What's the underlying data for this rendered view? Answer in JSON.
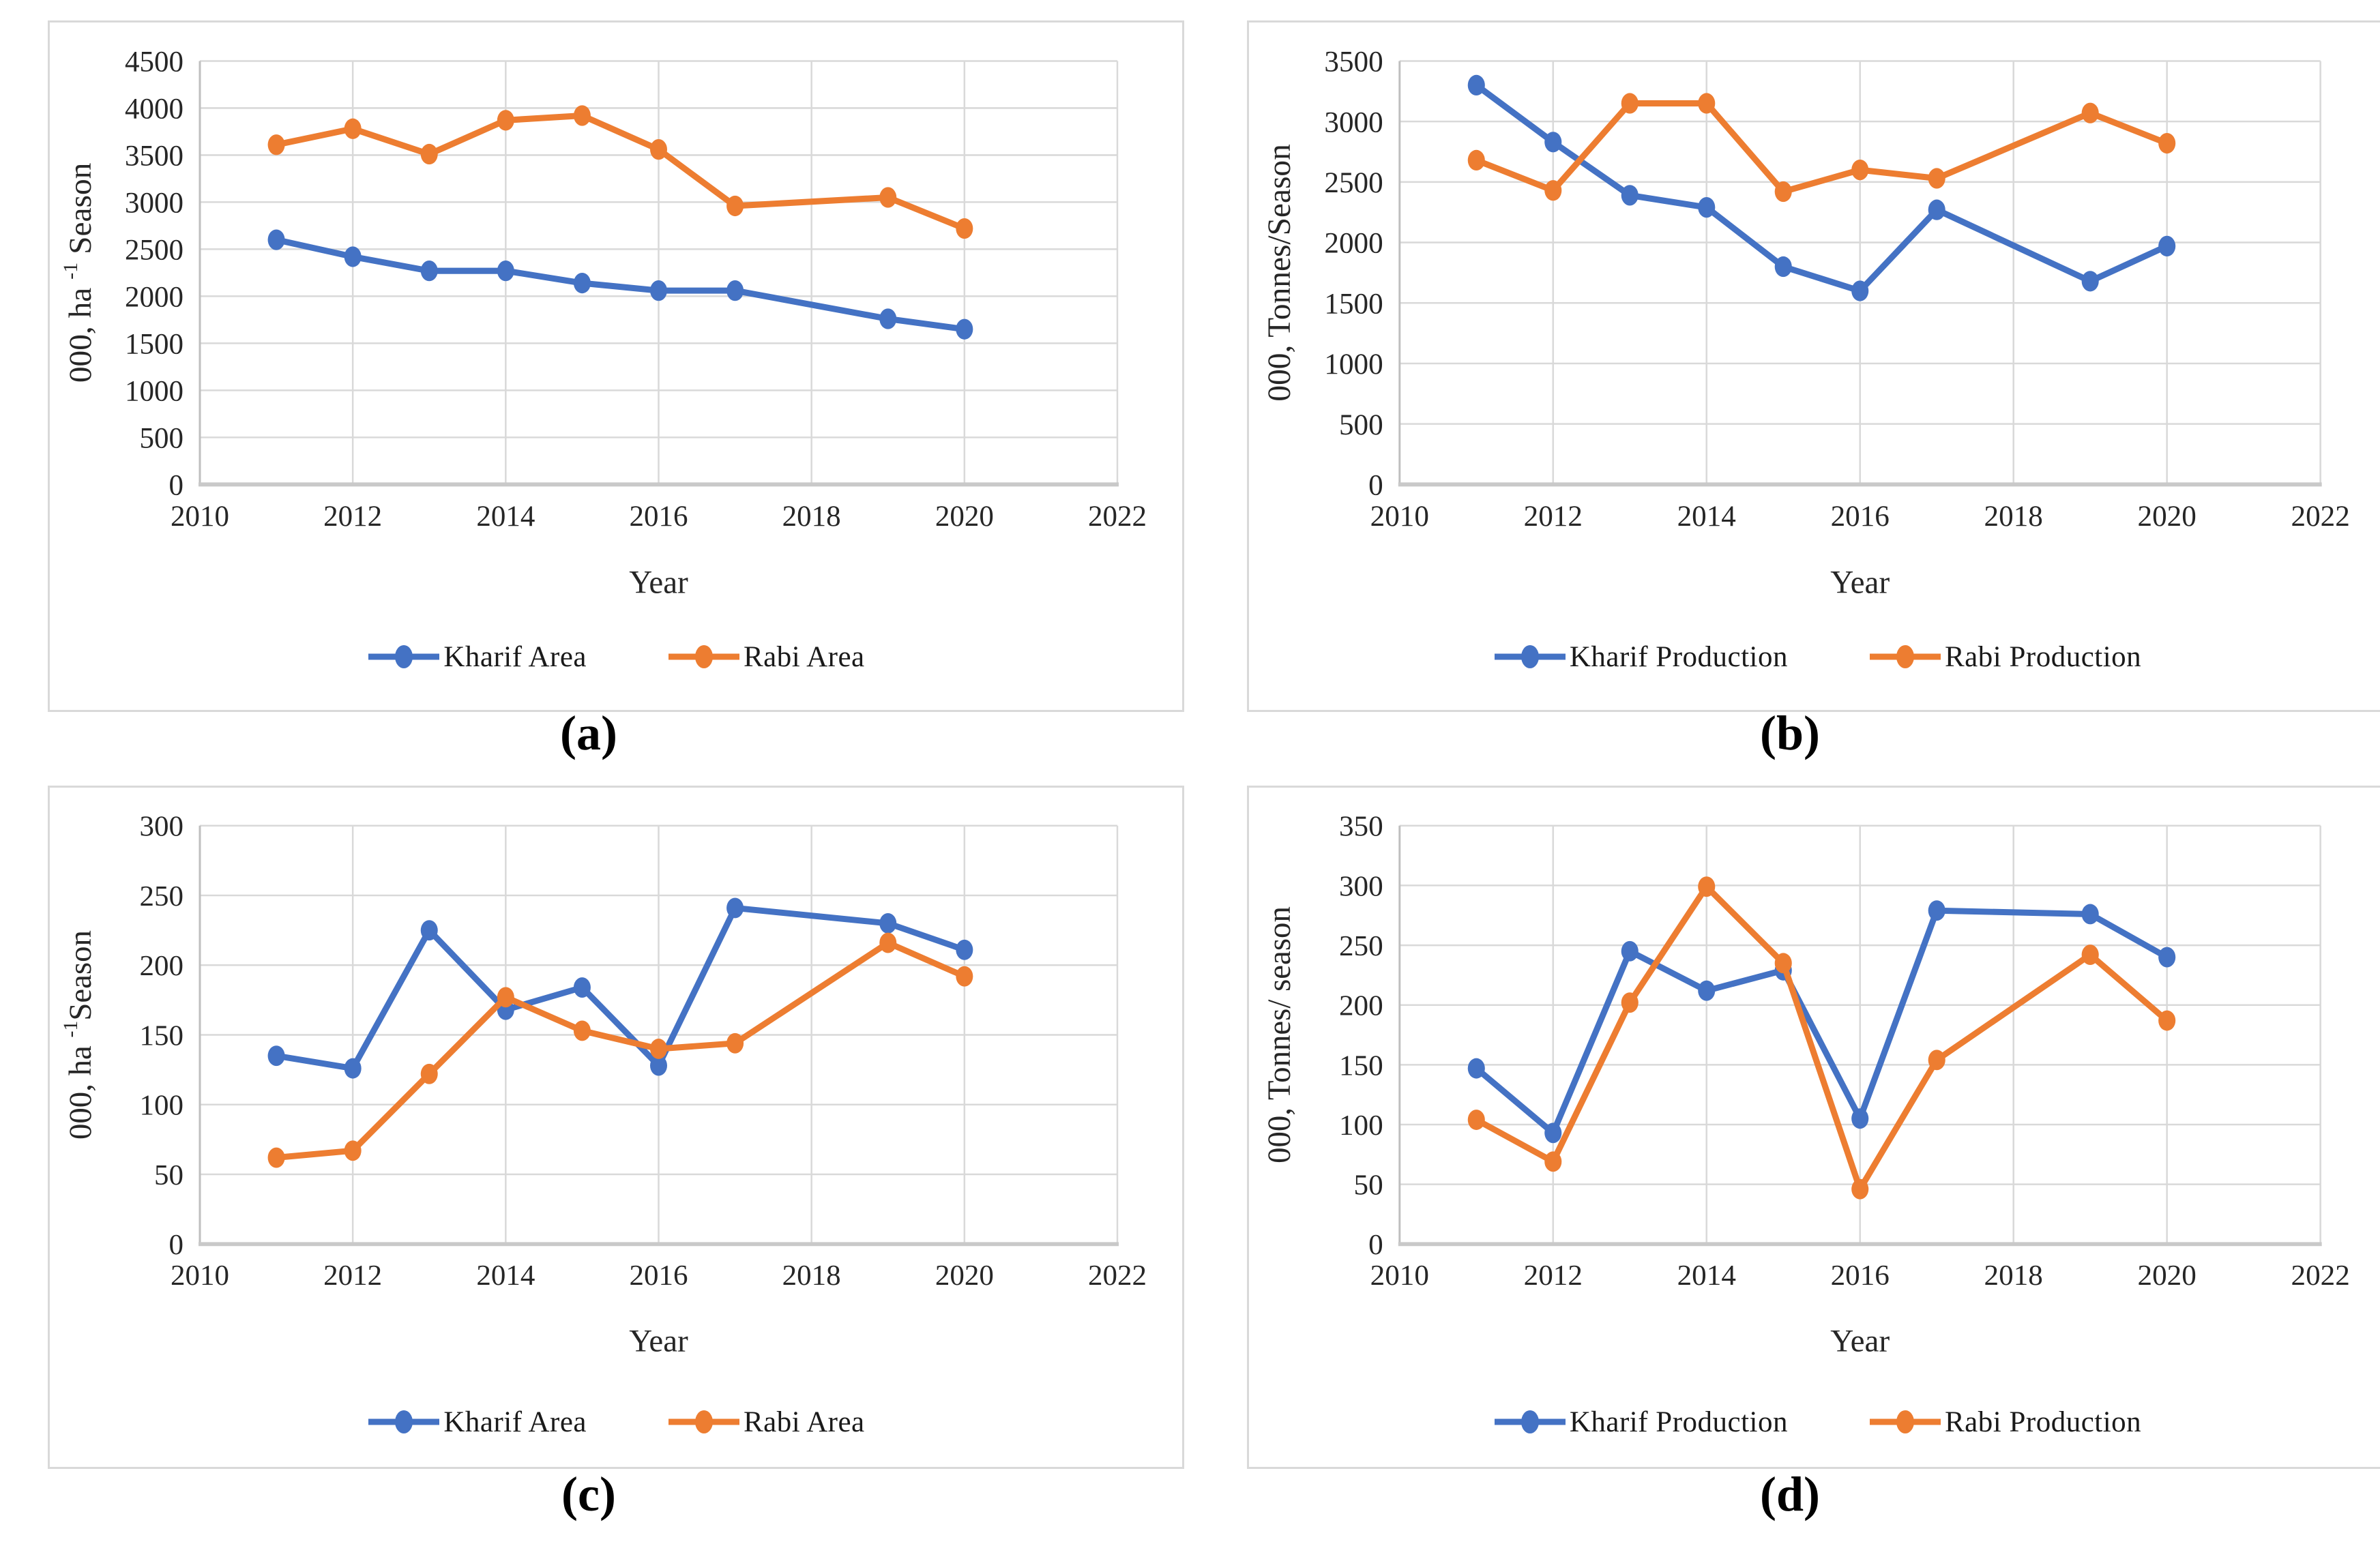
{
  "figure": {
    "captions": [
      {
        "id": "a",
        "label": "(a)"
      },
      {
        "id": "b",
        "label": "(b)"
      },
      {
        "id": "c",
        "label": "(c)"
      },
      {
        "id": "d",
        "label": "(d)"
      }
    ]
  },
  "colors": {
    "kharif_blue": "#4472C4",
    "rabi_orange": "#ED7D31",
    "gridline": "#D9D9D9",
    "axis_line": "#BFBFBF",
    "axis_line_bottom": "#C9C9C9",
    "tick_text": "#262626",
    "caption_text": "#000000",
    "panel_border": "#D9D9D9"
  },
  "chart_data": [
    {
      "id": "a",
      "type": "line",
      "title": "",
      "xlabel": "Year",
      "ylabel_segments": [
        {
          "t": "000, ha "
        },
        {
          "t": "-1",
          "sup": true
        },
        {
          "t": " Season"
        }
      ],
      "xlim": [
        2010,
        2022
      ],
      "x_tick_step": 2,
      "ylim": [
        0,
        4500
      ],
      "y_tick_step": 500,
      "grid": true,
      "legend_position": "bottom",
      "x": [
        2011,
        2012,
        2013,
        2014,
        2015,
        2016,
        2017,
        2019,
        2020
      ],
      "series": [
        {
          "name": "Kharif Area",
          "color_key": "kharif_blue",
          "values": [
            2600,
            2420,
            2270,
            2270,
            2140,
            2060,
            2060,
            1760,
            1650
          ]
        },
        {
          "name": "Rabi Area",
          "color_key": "rabi_orange",
          "values": [
            3610,
            3780,
            3510,
            3870,
            3920,
            3560,
            2960,
            3050,
            2720
          ]
        }
      ]
    },
    {
      "id": "b",
      "type": "line",
      "title": "",
      "xlabel": "Year",
      "ylabel_segments": [
        {
          "t": "000, Tonnes/Season"
        }
      ],
      "xlim": [
        2010,
        2022
      ],
      "x_tick_step": 2,
      "ylim": [
        0,
        3500
      ],
      "y_tick_step": 500,
      "grid": true,
      "legend_position": "bottom",
      "x": [
        2011,
        2012,
        2013,
        2014,
        2015,
        2016,
        2017,
        2019,
        2020
      ],
      "series": [
        {
          "name": "Kharif Production",
          "color_key": "kharif_blue",
          "values": [
            3300,
            2830,
            2390,
            2290,
            1800,
            1600,
            2270,
            1680,
            1970
          ]
        },
        {
          "name": "Rabi Production",
          "color_key": "rabi_orange",
          "values": [
            2680,
            2430,
            3150,
            3150,
            2420,
            2600,
            2530,
            3070,
            2820
          ]
        }
      ]
    },
    {
      "id": "c",
      "type": "line",
      "title": "",
      "xlabel": "Year",
      "ylabel_segments": [
        {
          "t": "000, ha "
        },
        {
          "t": "-1",
          "sup": true
        },
        {
          "t": "Season"
        }
      ],
      "xlim": [
        2010,
        2022
      ],
      "x_tick_step": 2,
      "ylim": [
        0,
        300
      ],
      "y_tick_step": 50,
      "grid": true,
      "legend_position": "bottom",
      "x": [
        2011,
        2012,
        2013,
        2014,
        2015,
        2016,
        2017,
        2019,
        2020
      ],
      "series": [
        {
          "name": "Kharif Area",
          "color_key": "kharif_blue",
          "values": [
            135,
            126,
            225,
            168,
            184,
            128,
            241,
            230,
            211
          ]
        },
        {
          "name": "Rabi Area",
          "color_key": "rabi_orange",
          "values": [
            62,
            67,
            122,
            177,
            153,
            140,
            144,
            216,
            192
          ]
        }
      ]
    },
    {
      "id": "d",
      "type": "line",
      "title": "",
      "xlabel": "Year",
      "ylabel_segments": [
        {
          "t": "000, Tonnes/ season"
        }
      ],
      "xlim": [
        2010,
        2022
      ],
      "x_tick_step": 2,
      "ylim": [
        0,
        350
      ],
      "y_tick_step": 50,
      "grid": true,
      "legend_position": "bottom",
      "x": [
        2011,
        2012,
        2013,
        2014,
        2015,
        2016,
        2017,
        2019,
        2020
      ],
      "series": [
        {
          "name": "Kharif Production",
          "color_key": "kharif_blue",
          "values": [
            147,
            93,
            245,
            212,
            229,
            105,
            279,
            276,
            240
          ]
        },
        {
          "name": "Rabi Production",
          "color_key": "rabi_orange",
          "values": [
            104,
            69,
            202,
            299,
            235,
            46,
            154,
            242,
            187
          ]
        }
      ]
    }
  ]
}
